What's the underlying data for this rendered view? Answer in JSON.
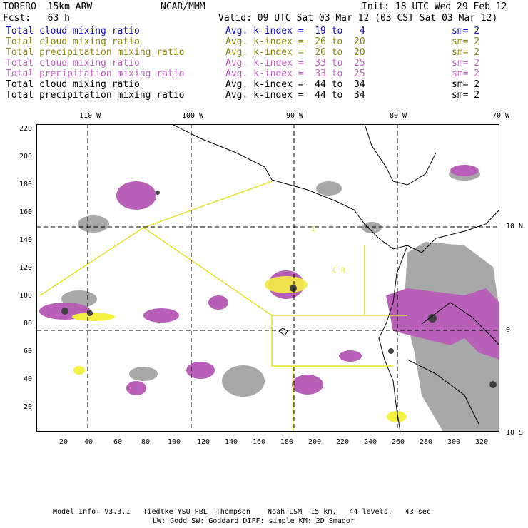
{
  "header": {
    "model": "TORERO  15km ARW",
    "org": "NCAR/MMM",
    "init": "Init: 18 UTC Wed 29 Feb 12",
    "fcst": "Fcst:   63 h",
    "valid": "Valid: 09 UTC Sat 03 Mar 12 (03 CST Sat 03 Mar 12)"
  },
  "legend": [
    {
      "field": "Total cloud mixing ratio",
      "kindex": "Avg. k-index =  19 to   4",
      "sm": "sm= 2",
      "color": "#1010c8"
    },
    {
      "field": "Total cloud mixing ratio",
      "kindex": "Avg. k-index =  26 to  20",
      "sm": "sm= 2",
      "color": "#8a8a10"
    },
    {
      "field": "Total precipitation mixing ratio",
      "kindex": "Avg. k-index =  26 to  20",
      "sm": "sm= 2",
      "color": "#8a8a10"
    },
    {
      "field": "Total cloud mixing ratio",
      "kindex": "Avg. k-index =  33 to  25",
      "sm": "sm= 2",
      "color": "#c060c0"
    },
    {
      "field": "Total precipitation mixing ratio",
      "kindex": "Avg. k-index =  33 to  25",
      "sm": "sm= 2",
      "color": "#c060c0"
    },
    {
      "field": "Total cloud mixing ratio",
      "kindex": "Avg. k-index =  44 to  34",
      "sm": "sm= 2",
      "color": "#000000"
    },
    {
      "field": "Total precipitation mixing ratio",
      "kindex": "Avg. k-index =  44 to  34",
      "sm": "sm= 2",
      "color": "#000000"
    }
  ],
  "axes": {
    "lon_labels": [
      "110 W",
      "100 W",
      "90 W",
      "80 W",
      "70 W"
    ],
    "lat_labels": [
      "10 N",
      "0",
      "10 S"
    ],
    "x_ticks": [
      "20",
      "40",
      "60",
      "80",
      "100",
      "120",
      "140",
      "160",
      "180",
      "200",
      "220",
      "240",
      "260",
      "280",
      "300",
      "320"
    ],
    "y_ticks": [
      "220",
      "200",
      "180",
      "160",
      "140",
      "120",
      "100",
      "80",
      "60",
      "40",
      "20"
    ]
  },
  "map_labels": {
    "region1": "C R",
    "region2": "I"
  },
  "footer": {
    "line1": "Model Info: V3.3.1   Tiedtke YSU PBL  Thompson    Noah LSM  15 km,   44 levels,   43 sec",
    "line2": "LW: Godd SW: Goddard DIFF: simple KM: 2D Smagor"
  },
  "colors": {
    "gray": "#a8a8a8",
    "purple": "#b860b8",
    "yellow": "#f4f040",
    "dark": "#404040"
  }
}
